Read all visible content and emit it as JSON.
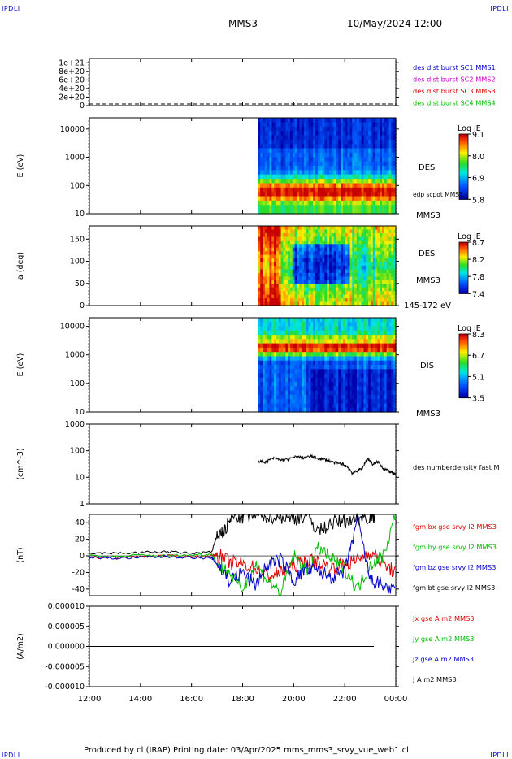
{
  "branding": {
    "top_left": "IPDLI",
    "top_right": "IPDLI",
    "bottom_left": "IPDLI",
    "bottom_right": "IPDLI"
  },
  "header": {
    "mission": "MMS3",
    "datetime": "10/May/2024 12:00"
  },
  "footer": {
    "text": "Produced by cl (IRAP)   Printing date: 03/Apr/2025   mms_mms3_srvy_vue_web1.cl"
  },
  "x_axis": {
    "ticks": [
      "12:00",
      "14:00",
      "16:00",
      "18:00",
      "20:00",
      "22:00",
      "00:00"
    ],
    "range_hours": [
      12,
      24
    ]
  },
  "colors": {
    "mms1": "#0000cc",
    "mms2": "#cc00cc",
    "mms3": "#dd0000",
    "mms4": "#00bb00",
    "black": "#000000"
  },
  "chart_data": [
    {
      "id": "panel1",
      "type": "line",
      "yticks": [
        "1e+21",
        "8e+20",
        "6e+20",
        "4e+20",
        "2e+20",
        "0"
      ],
      "ylim": [
        0,
        1.1e+21
      ],
      "legend": [
        {
          "label": "des dist burst SC1 MMS1",
          "color": "#0000cc"
        },
        {
          "label": "des dist burst SC2 MMS2",
          "color": "#cc00cc"
        },
        {
          "label": "des dist burst SC3 MMS3",
          "color": "#dd0000"
        },
        {
          "label": "des dist burst SC4 MMS4",
          "color": "#00bb00"
        }
      ],
      "series": [
        {
          "values": [
            0,
            0
          ]
        }
      ]
    },
    {
      "id": "panel2",
      "type": "heatmap",
      "ylabel": "E (eV)",
      "yscale": "log",
      "ylim": [
        10,
        25000
      ],
      "yticks": [
        "10000",
        "1000",
        "100",
        "10"
      ],
      "colorbar": {
        "title": "Log JE",
        "ticks": [
          "9.1",
          "8.0",
          "6.9",
          "5.8"
        ],
        "range": [
          5.8,
          9.1
        ]
      },
      "labels": [
        "DES",
        "MMS3",
        "edp scpot MMS3"
      ],
      "data_start_hour": 18.6
    },
    {
      "id": "panel3",
      "type": "heatmap",
      "ylabel": "a (deg)",
      "ylim": [
        0,
        180
      ],
      "yticks": [
        "150",
        "100",
        "50",
        "0"
      ],
      "colorbar": {
        "title": "Log JE",
        "ticks": [
          "8.7",
          "8.2",
          "7.8",
          "7.4"
        ],
        "range": [
          7.4,
          8.7
        ]
      },
      "labels": [
        "DES",
        "MMS3",
        "145-172 eV"
      ],
      "data_start_hour": 18.6
    },
    {
      "id": "panel4",
      "type": "heatmap",
      "ylabel": "E (eV)",
      "yscale": "log",
      "ylim": [
        10,
        20000
      ],
      "yticks": [
        "10000",
        "1000",
        "100",
        "10"
      ],
      "colorbar": {
        "title": "Log JE",
        "ticks": [
          "8.3",
          "6.7",
          "5.1",
          "3.5"
        ],
        "range": [
          3.5,
          8.3
        ]
      },
      "labels": [
        "DIS",
        "MMS3"
      ],
      "data_start_hour": 18.6
    },
    {
      "id": "panel5",
      "type": "line",
      "ylabel": "(cm^-3)",
      "yscale": "log",
      "ylim": [
        1,
        1000
      ],
      "yticks": [
        "1000",
        "100",
        "10",
        "1"
      ],
      "legend": [
        {
          "label": "des numberdensity fast M",
          "color": "#000000"
        }
      ],
      "series": [
        {
          "color": "#000000",
          "x": [
            18.6,
            18.9,
            19.2,
            19.5,
            19.8,
            20.1,
            20.4,
            20.7,
            21.0,
            21.3,
            21.6,
            21.9,
            22.1,
            22.3,
            22.5,
            22.7,
            22.9,
            23.1,
            23.3,
            23.5,
            23.7,
            23.9,
            24.0
          ],
          "values": [
            40,
            38,
            52,
            45,
            48,
            60,
            55,
            62,
            50,
            45,
            35,
            32,
            25,
            14,
            18,
            22,
            50,
            30,
            38,
            22,
            18,
            14,
            12
          ]
        }
      ]
    },
    {
      "id": "panel6",
      "type": "line",
      "ylabel": "(nT)",
      "ylim": [
        -48,
        50
      ],
      "yticks": [
        "40",
        "20",
        "0",
        "-20",
        "-40"
      ],
      "legend": [
        {
          "label": "fgm bx gse srvy l2 MMS3",
          "color": "#dd0000"
        },
        {
          "label": "fgm by gse srvy l2 MMS3",
          "color": "#00bb00"
        },
        {
          "label": "fgm bz gse srvy l2 MMS3",
          "color": "#0000cc"
        },
        {
          "label": "fgm bt gse srvy l2 MMS3",
          "color": "#000000"
        }
      ],
      "series": [
        {
          "color": "#dd0000",
          "x": [
            12,
            13,
            14,
            15,
            16,
            16.8,
            17.0,
            17.5,
            18.0,
            18.5,
            19.0,
            19.5,
            20.0,
            20.5,
            21.0,
            21.5,
            22.0,
            22.5,
            23.0,
            23.5,
            24.0
          ],
          "values": [
            -2,
            -2,
            -1,
            0,
            -1,
            0,
            2,
            -8,
            -10,
            -15,
            -25,
            -20,
            -12,
            -5,
            -8,
            -15,
            -10,
            -5,
            5,
            -10,
            -20
          ]
        },
        {
          "color": "#00bb00",
          "x": [
            12,
            13,
            14,
            15,
            16,
            16.8,
            17.0,
            17.5,
            18.0,
            18.5,
            19.0,
            19.5,
            20.0,
            20.5,
            21.0,
            21.5,
            22.0,
            22.5,
            23.0,
            23.5,
            24.0
          ],
          "values": [
            0,
            -1,
            1,
            0,
            1,
            2,
            -10,
            -20,
            -40,
            -10,
            -30,
            -45,
            0,
            -20,
            10,
            -5,
            -15,
            -40,
            -10,
            0,
            50
          ]
        },
        {
          "color": "#0000cc",
          "x": [
            12,
            13,
            14,
            15,
            16,
            16.8,
            17.0,
            17.5,
            18.0,
            18.5,
            19.0,
            19.5,
            20.0,
            20.5,
            21.0,
            21.5,
            22.0,
            22.5,
            23.0,
            23.5,
            24.0
          ],
          "values": [
            -2,
            -3,
            -2,
            -1,
            -2,
            -3,
            -10,
            -30,
            -20,
            -35,
            -10,
            -5,
            -30,
            -15,
            -20,
            -25,
            -20,
            45,
            -30,
            -35,
            -45
          ]
        },
        {
          "color": "#000000",
          "x": [
            12,
            13,
            14,
            15,
            16,
            16.8,
            17.0,
            17.3,
            17.6,
            18.0,
            18.5,
            19.0,
            19.5,
            20.0,
            20.5,
            21.0,
            21.5,
            22.0,
            22.5,
            23.0,
            23.2
          ],
          "values": [
            3,
            3,
            4,
            5,
            3,
            5,
            25,
            30,
            48,
            47,
            49,
            48,
            47,
            45,
            48,
            30,
            40,
            42,
            45,
            48,
            49
          ]
        }
      ]
    },
    {
      "id": "panel7",
      "type": "line",
      "ylabel": "(A/m2)",
      "ylim": [
        -1e-05,
        1e-05
      ],
      "yticks": [
        "0.000010",
        "0.000005",
        "0.000000",
        "-0.000005",
        "-0.000010"
      ],
      "legend": [
        {
          "label": "Jx gse A m2 MMS3",
          "color": "#dd0000"
        },
        {
          "label": "Jy gse A m2 MMS3",
          "color": "#00bb00"
        },
        {
          "label": "Jz gse A m2 MMS3",
          "color": "#0000cc"
        },
        {
          "label": "J A m2 MMS3",
          "color": "#000000"
        }
      ],
      "series": [
        {
          "color": "#000000",
          "x": [
            12,
            24
          ],
          "values": [
            0,
            0
          ]
        }
      ]
    }
  ]
}
